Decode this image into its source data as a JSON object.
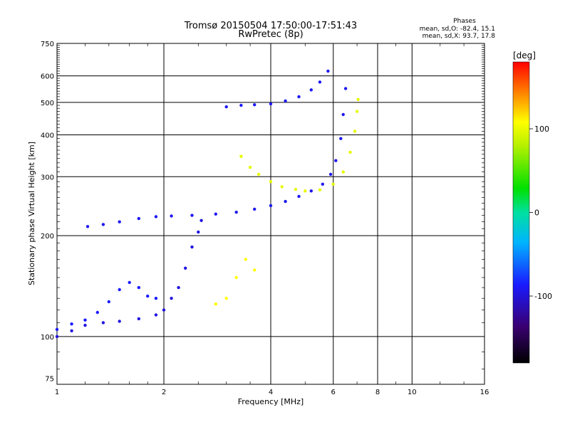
{
  "chart_data": {
    "type": "scatter",
    "title": "Tromsø 20150504 17:50:00-17:51:43",
    "subtitle": "RwPretec (8p)",
    "xlabel": "Frequency [MHz]",
    "ylabel": "Stationary phase Virtual Height [km]",
    "x_scale": "log",
    "y_scale": "log",
    "xlim": [
      1,
      16
    ],
    "ylim": [
      72,
      750
    ],
    "x_ticks": [
      1,
      2,
      4,
      6,
      8,
      10,
      16
    ],
    "y_ticks": [
      75,
      100,
      200,
      300,
      400,
      500,
      600,
      750
    ],
    "grid": true,
    "legend": {
      "heading": "Phases",
      "lines": [
        "mean, sd,O: -82.4, 15.1",
        "mean, sd,X:  93.7, 17.8"
      ],
      "placement": "top-right"
    },
    "colorbar": {
      "label": "[deg]",
      "range": [
        -180,
        180
      ],
      "ticks": [
        100,
        0,
        -100
      ]
    },
    "traces": [
      {
        "phase": -95,
        "points": [
          [
            1.0,
            100
          ],
          [
            1.1,
            104
          ],
          [
            1.2,
            108
          ],
          [
            1.35,
            110
          ],
          [
            1.5,
            111
          ],
          [
            1.7,
            113
          ],
          [
            1.9,
            116
          ],
          [
            2.0,
            120
          ],
          [
            2.1,
            130
          ],
          [
            2.2,
            140
          ],
          [
            2.3,
            160
          ],
          [
            2.4,
            185
          ],
          [
            2.5,
            205
          ],
          [
            2.55,
            222
          ]
        ]
      },
      {
        "phase": -90,
        "points": [
          [
            1.22,
            213
          ],
          [
            1.35,
            216
          ],
          [
            1.5,
            220
          ],
          [
            1.7,
            225
          ],
          [
            1.9,
            228
          ],
          [
            2.1,
            229
          ],
          [
            2.4,
            230
          ],
          [
            2.8,
            232
          ],
          [
            3.2,
            235
          ],
          [
            3.6,
            240
          ],
          [
            4.0,
            246
          ],
          [
            4.4,
            253
          ],
          [
            4.8,
            262
          ],
          [
            5.2,
            272
          ],
          [
            5.6,
            285
          ],
          [
            5.9,
            305
          ],
          [
            6.1,
            335
          ],
          [
            6.3,
            390
          ],
          [
            6.4,
            460
          ],
          [
            6.5,
            550
          ]
        ]
      },
      {
        "phase": -85,
        "points": [
          [
            1.0,
            105
          ],
          [
            1.1,
            109
          ],
          [
            1.2,
            112
          ],
          [
            1.3,
            118
          ],
          [
            1.4,
            127
          ],
          [
            1.5,
            138
          ],
          [
            1.6,
            145
          ],
          [
            1.7,
            140
          ],
          [
            1.8,
            132
          ],
          [
            1.9,
            130
          ]
        ]
      },
      {
        "phase": -88,
        "points": [
          [
            3.0,
            485
          ],
          [
            3.3,
            490
          ],
          [
            3.6,
            492
          ],
          [
            4.0,
            495
          ],
          [
            4.4,
            505
          ],
          [
            4.8,
            520
          ],
          [
            5.2,
            545
          ],
          [
            5.5,
            575
          ],
          [
            5.8,
            620
          ]
        ]
      },
      {
        "phase": 100,
        "points": [
          [
            3.3,
            345
          ],
          [
            3.5,
            320
          ],
          [
            3.7,
            305
          ],
          [
            4.0,
            290
          ],
          [
            4.3,
            280
          ],
          [
            4.7,
            275
          ],
          [
            5.0,
            272
          ],
          [
            5.5,
            274
          ],
          [
            6.0,
            285
          ],
          [
            6.4,
            310
          ],
          [
            6.7,
            355
          ],
          [
            6.9,
            410
          ],
          [
            7.0,
            470
          ],
          [
            7.05,
            510
          ]
        ]
      },
      {
        "phase": 110,
        "points": [
          [
            2.8,
            125
          ],
          [
            3.0,
            130
          ],
          [
            3.2,
            150
          ],
          [
            3.4,
            170
          ],
          [
            3.6,
            158
          ]
        ]
      }
    ]
  }
}
